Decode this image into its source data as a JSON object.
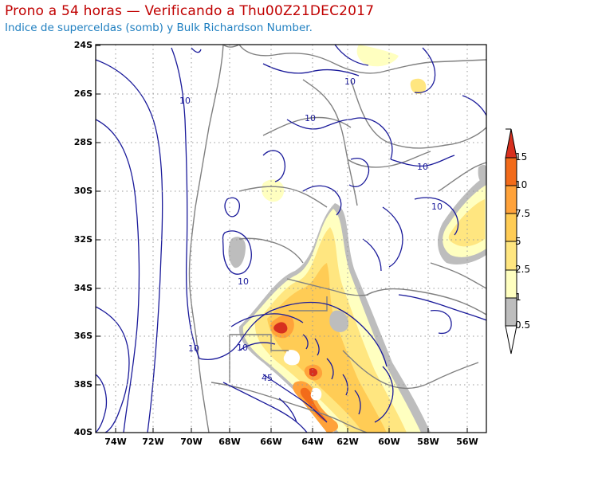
{
  "header": {
    "title": "Prono a 54 horas — Verificando a Thu00Z21DEC2017",
    "subtitle": "Indice de superceldas (somb) y Bulk Richardson Number."
  },
  "axes": {
    "lat_labels": [
      "24S",
      "26S",
      "28S",
      "30S",
      "32S",
      "34S",
      "36S",
      "38S",
      "40S"
    ],
    "lon_labels": [
      "74W",
      "72W",
      "70W",
      "68W",
      "66W",
      "64W",
      "62W",
      "60W",
      "58W",
      "56W"
    ]
  },
  "colorbar": {
    "levels": [
      "0.5",
      "1",
      "2.5",
      "5",
      "7.5",
      "10",
      "15"
    ],
    "colors": [
      "#bdbdbd",
      "#ffffc0",
      "#ffe680",
      "#ffcc55",
      "#ffa23a",
      "#f26b1a",
      "#d7301f"
    ],
    "top_color": "#d7301f",
    "bottom_color": "#ffffff"
  },
  "contour_labels": [
    "10",
    "10",
    "10",
    "10",
    "10",
    "10",
    "10",
    "10",
    "45"
  ],
  "colors": {
    "contour": "#1a1a9a",
    "borders": "#808080",
    "title": "#c00000",
    "subtitle": "#1f7fc0"
  }
}
